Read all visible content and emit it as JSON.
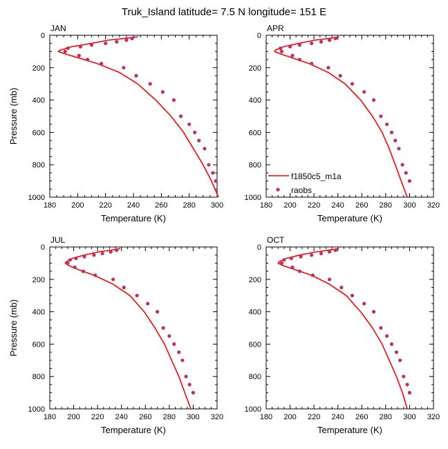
{
  "figure_title": "Truk_Island  latitude= 7.5 N longitude= 151 E",
  "colors": {
    "model_line": "#ff0000",
    "obs_marker": "#c0305a"
  },
  "legend": {
    "model_label": "f1850c5_m1a",
    "obs_label": "raobs",
    "location": "lower-left of APR panel"
  },
  "chart_data": [
    {
      "type": "line",
      "title": "JAN",
      "xlabel": "Temperature (K)",
      "ylabel": "Pressure (mb)",
      "xlim": [
        180,
        300
      ],
      "ylim": [
        1000,
        0
      ],
      "x_ticks": [
        "180",
        "200",
        "220",
        "240",
        "260",
        "280",
        "300"
      ],
      "y_ticks": [
        "0",
        "200",
        "400",
        "600",
        "800",
        "1000"
      ],
      "series": [
        {
          "name": "f1850c5_m1a",
          "kind": "line",
          "x": [
            243,
            233,
            222,
            210,
            196,
            188,
            186,
            191,
            201,
            214,
            230,
            243,
            256,
            267,
            276,
            283,
            290,
            296,
            301
          ],
          "y": [
            10,
            20,
            30,
            50,
            70,
            90,
            100,
            115,
            140,
            175,
            230,
            300,
            400,
            500,
            600,
            700,
            800,
            900,
            1000
          ]
        },
        {
          "name": "raobs",
          "kind": "scatter",
          "x": [
            239,
            235,
            228,
            220,
            210,
            202,
            193,
            191,
            201,
            207,
            217,
            233,
            242,
            252,
            261,
            269,
            274,
            280,
            284,
            287,
            291,
            294,
            297,
            299
          ],
          "y": [
            20,
            30,
            40,
            50,
            60,
            70,
            80,
            100,
            125,
            150,
            175,
            200,
            250,
            300,
            350,
            400,
            500,
            550,
            600,
            650,
            700,
            800,
            850,
            900
          ]
        }
      ]
    },
    {
      "type": "line",
      "title": "APR",
      "xlabel": "Temperature (K)",
      "ylabel": "",
      "xlim": [
        180,
        320
      ],
      "ylim": [
        1000,
        0
      ],
      "x_ticks": [
        "180",
        "200",
        "220",
        "240",
        "260",
        "280",
        "300",
        "320"
      ],
      "y_ticks": [
        "0",
        "200",
        "400",
        "600",
        "800",
        "1000"
      ],
      "series": [
        {
          "name": "f1850c5_m1a",
          "kind": "line",
          "x": [
            241,
            232,
            221,
            207,
            195,
            188,
            187,
            192,
            202,
            216,
            232,
            246,
            259,
            269,
            277,
            283,
            288,
            293,
            298
          ],
          "y": [
            10,
            20,
            30,
            50,
            70,
            90,
            100,
            115,
            140,
            175,
            230,
            300,
            400,
            500,
            600,
            700,
            800,
            900,
            1000
          ]
        },
        {
          "name": "raobs",
          "kind": "scatter",
          "x": [
            238,
            233,
            226,
            218,
            208,
            200,
            192,
            193,
            202,
            208,
            218,
            232,
            242,
            252,
            262,
            270,
            276,
            281,
            285,
            288,
            291,
            294,
            297,
            300
          ],
          "y": [
            20,
            30,
            40,
            50,
            60,
            70,
            80,
            100,
            125,
            150,
            175,
            200,
            250,
            300,
            350,
            400,
            500,
            550,
            600,
            650,
            700,
            800,
            850,
            900
          ]
        }
      ]
    },
    {
      "type": "line",
      "title": "JUL",
      "xlabel": "Temperature (K)",
      "ylabel": "Pressure (mb)",
      "xlim": [
        180,
        320
      ],
      "ylim": [
        1000,
        0
      ],
      "x_ticks": [
        "180",
        "200",
        "220",
        "240",
        "260",
        "280",
        "300",
        "320"
      ],
      "y_ticks": [
        "0",
        "200",
        "400",
        "600",
        "800",
        "1000"
      ],
      "series": [
        {
          "name": "f1850c5_m1a",
          "kind": "line",
          "x": [
            239,
            231,
            221,
            209,
            199,
            194,
            193,
            196,
            204,
            217,
            233,
            247,
            259,
            268,
            276,
            282,
            288,
            293,
            298
          ],
          "y": [
            10,
            20,
            30,
            50,
            70,
            90,
            100,
            115,
            140,
            175,
            230,
            300,
            400,
            500,
            600,
            700,
            800,
            900,
            1000
          ]
        },
        {
          "name": "raobs",
          "kind": "scatter",
          "x": [
            236,
            231,
            224,
            217,
            209,
            202,
            197,
            195,
            201,
            208,
            218,
            233,
            242,
            253,
            262,
            270,
            275,
            280,
            284,
            288,
            291,
            294,
            297,
            300
          ],
          "y": [
            20,
            30,
            40,
            50,
            60,
            70,
            80,
            100,
            125,
            150,
            175,
            200,
            250,
            300,
            350,
            400,
            500,
            550,
            600,
            650,
            700,
            800,
            850,
            900
          ]
        }
      ]
    },
    {
      "type": "line",
      "title": "OCT",
      "xlabel": "Temperature (K)",
      "ylabel": "",
      "xlim": [
        180,
        320
      ],
      "ylim": [
        1000,
        0
      ],
      "x_ticks": [
        "180",
        "200",
        "220",
        "240",
        "260",
        "280",
        "300",
        "320"
      ],
      "y_ticks": [
        "0",
        "200",
        "400",
        "600",
        "800",
        "1000"
      ],
      "series": [
        {
          "name": "f1850c5_m1a",
          "kind": "line",
          "x": [
            241,
            232,
            222,
            208,
            197,
            191,
            190,
            194,
            204,
            218,
            233,
            247,
            259,
            269,
            277,
            283,
            289,
            294,
            298
          ],
          "y": [
            10,
            20,
            30,
            50,
            70,
            90,
            100,
            115,
            140,
            175,
            230,
            300,
            400,
            500,
            600,
            700,
            800,
            900,
            1000
          ]
        },
        {
          "name": "raobs",
          "kind": "scatter",
          "x": [
            238,
            233,
            226,
            218,
            209,
            201,
            195,
            193,
            202,
            208,
            219,
            233,
            243,
            252,
            262,
            270,
            276,
            281,
            285,
            289,
            292,
            295,
            298,
            300
          ],
          "y": [
            20,
            30,
            40,
            50,
            60,
            70,
            80,
            100,
            125,
            150,
            175,
            200,
            250,
            300,
            350,
            400,
            500,
            550,
            600,
            650,
            700,
            800,
            850,
            900
          ]
        }
      ]
    }
  ]
}
